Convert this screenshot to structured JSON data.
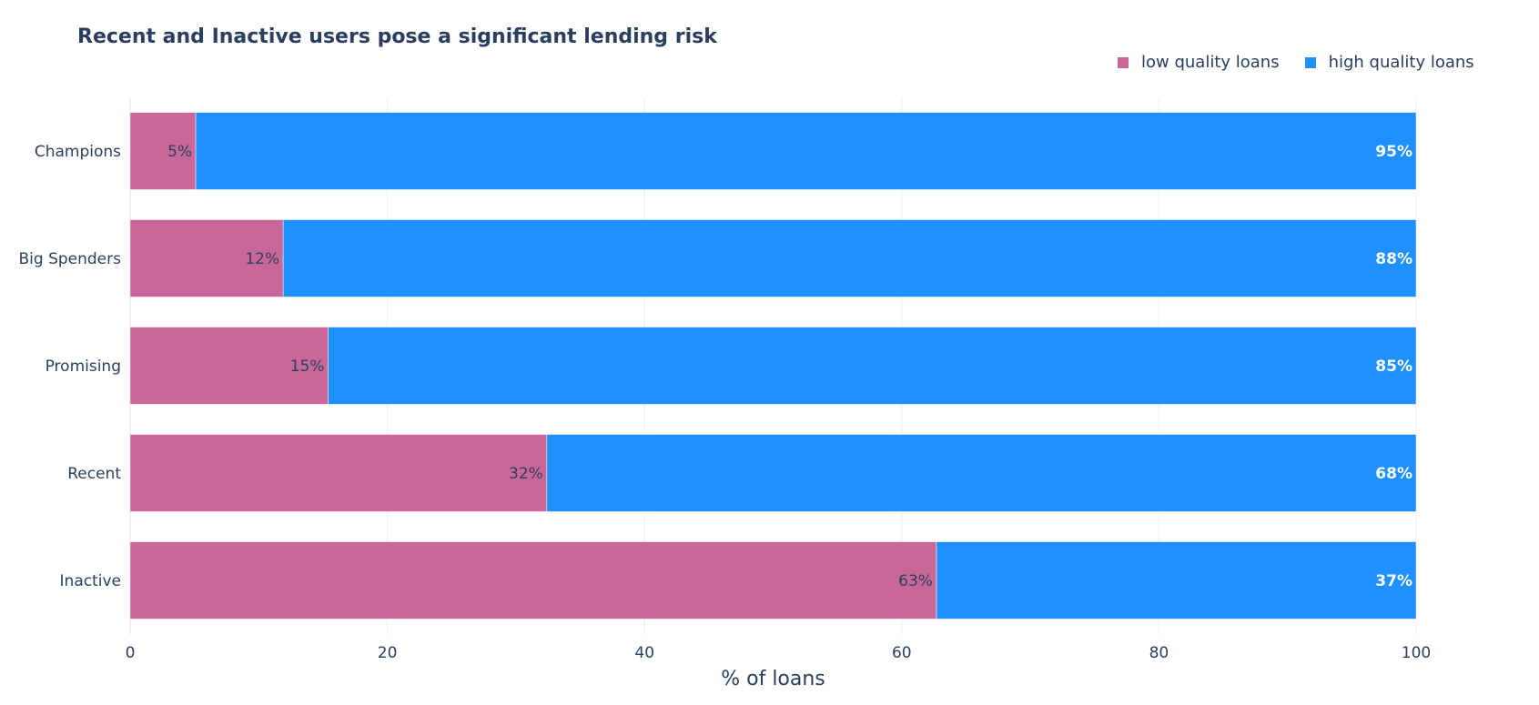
{
  "colors": {
    "low": "#c96798",
    "high": "#1e90ff",
    "text": "#2a3f5f",
    "grid": "#ebf0f8"
  },
  "chart_data": {
    "type": "bar",
    "orientation": "horizontal",
    "stacked": true,
    "title": "Recent and Inactive users pose a significant lending risk",
    "xlabel": "% of loans",
    "ylabel": "",
    "xlim": [
      0,
      100
    ],
    "xticks": [
      "0",
      "20",
      "40",
      "60",
      "80",
      "100"
    ],
    "grid": true,
    "legend_position": "top-right",
    "categories": [
      "Champions",
      "Big Spenders",
      "Promising",
      "Recent",
      "Inactive"
    ],
    "series": [
      {
        "name": "low quality loans",
        "values": [
          5.1,
          11.9,
          15.4,
          32.4,
          62.7
        ],
        "labels": [
          "5%",
          "12%",
          "15%",
          "32%",
          "63%"
        ]
      },
      {
        "name": "high quality loans",
        "values": [
          94.9,
          88.1,
          84.6,
          67.6,
          37.3
        ],
        "labels": [
          "95%",
          "88%",
          "85%",
          "68%",
          "37%"
        ]
      }
    ]
  }
}
